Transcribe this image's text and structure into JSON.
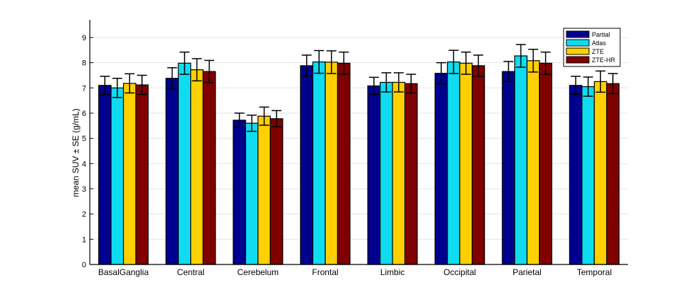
{
  "chart_data": {
    "type": "bar",
    "xlabel": "",
    "ylabel": "mean SUV ± SE (g/mL)",
    "ylim": [
      0,
      9.7
    ],
    "yticks": [
      0,
      1,
      2,
      3,
      4,
      5,
      6,
      7,
      8,
      9
    ],
    "grid": "horizontal",
    "legend_position": "top-right",
    "error_bars": true,
    "categories": [
      "BasalGanglia",
      "Central",
      "Cerebelum",
      "Frontal",
      "Limbic",
      "Occipital",
      "Parietal",
      "Temporal"
    ],
    "series": [
      {
        "name": "Partial",
        "color": "#00008f",
        "values": [
          7.1,
          7.38,
          5.72,
          7.88,
          7.08,
          7.58,
          7.65,
          7.1
        ],
        "errors": [
          0.36,
          0.42,
          0.28,
          0.42,
          0.34,
          0.42,
          0.4,
          0.36
        ]
      },
      {
        "name": "Atlas",
        "color": "#0fdcf0",
        "values": [
          7.0,
          7.98,
          5.6,
          8.03,
          7.22,
          8.03,
          8.27,
          7.05
        ],
        "errors": [
          0.38,
          0.44,
          0.32,
          0.45,
          0.38,
          0.46,
          0.45,
          0.38
        ]
      },
      {
        "name": "ZTE",
        "color": "#ffd000",
        "values": [
          7.18,
          7.72,
          5.88,
          8.02,
          7.22,
          7.98,
          8.08,
          7.25
        ],
        "errors": [
          0.38,
          0.44,
          0.36,
          0.45,
          0.38,
          0.44,
          0.45,
          0.42
        ]
      },
      {
        "name": "ZTE-HR",
        "color": "#800000",
        "values": [
          7.12,
          7.65,
          5.78,
          7.98,
          7.17,
          7.88,
          7.98,
          7.17
        ],
        "errors": [
          0.38,
          0.44,
          0.32,
          0.44,
          0.37,
          0.42,
          0.44,
          0.4
        ]
      }
    ]
  }
}
